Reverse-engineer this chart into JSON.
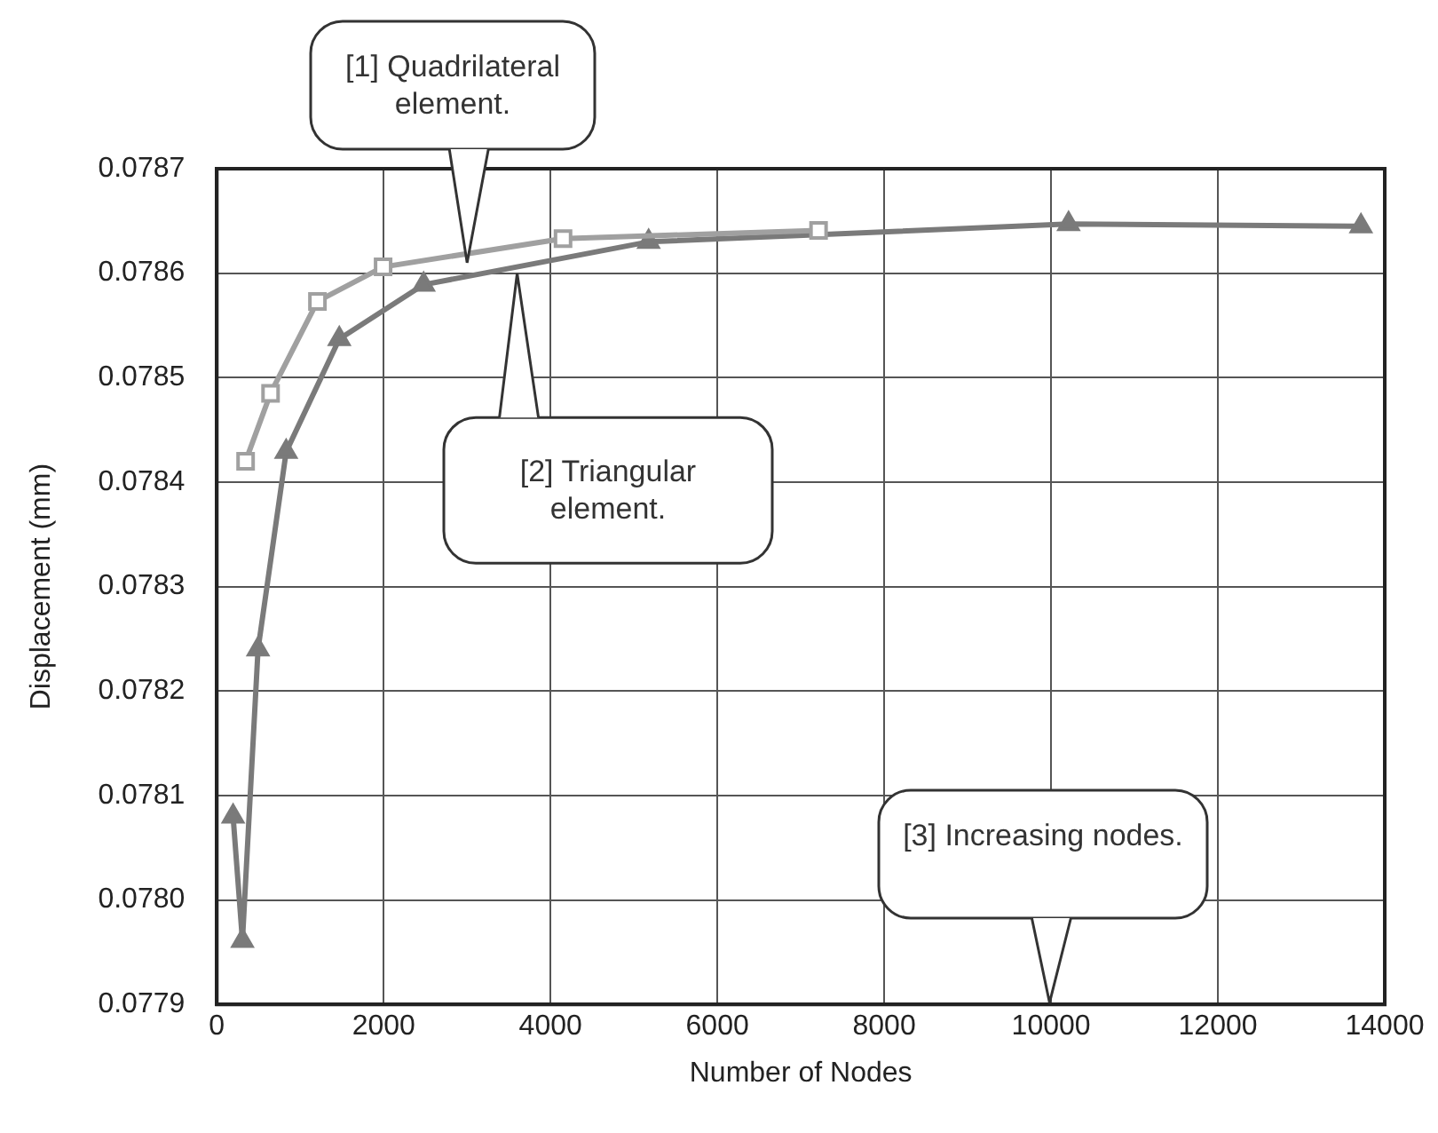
{
  "chart_data": {
    "type": "line",
    "xlabel": "Number of Nodes",
    "ylabel": "Displacement (mm)",
    "xlim": [
      0,
      14000
    ],
    "xticks": [
      0,
      2000,
      4000,
      6000,
      8000,
      10000,
      12000,
      14000
    ],
    "ylim": [
      0.0779,
      0.0787
    ],
    "yticks": [
      0.0779,
      {
        "value": 0.078,
        "label": "0.0780"
      },
      0.0781,
      0.0782,
      0.0783,
      0.0784,
      0.0785,
      0.0786,
      0.0787
    ],
    "grid": true,
    "series": [
      {
        "name": null,
        "color": "#a0a0a0",
        "marker": "square",
        "x": [
          345,
          644,
          1206,
          1993,
          4150,
          7213
        ],
        "values": [
          0.07842,
          0.078485,
          0.078573,
          0.078606,
          0.078633,
          0.078641
        ]
      },
      {
        "name": null,
        "color": "#7a7a7a",
        "marker": "triangle",
        "x": [
          195,
          307,
          494,
          831,
          1468,
          2479,
          5176,
          10210,
          13715
        ],
        "values": [
          0.07808,
          0.077961,
          0.07824,
          0.078429,
          0.078537,
          0.078589,
          0.07863,
          0.078647,
          0.078645
        ]
      }
    ],
    "annotations": [
      {
        "text": "[1] Quadrilateral element.",
        "x": 3000,
        "y": 0.07861
      },
      {
        "text": "[2] Triangular element.",
        "x": 3600,
        "y": 0.0786
      },
      "[3] Increasing nodes."
    ]
  }
}
